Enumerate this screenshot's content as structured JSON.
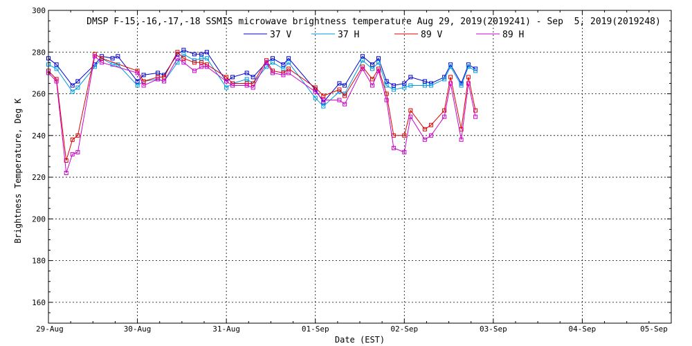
{
  "chart_data": {
    "type": "line",
    "title": "DMSP F-15,-16,-17,-18 SSMIS microwave brightness temperature Aug 29, 2019(2019241) - Sep  5, 2019(2019248)",
    "xlabel": "Date (EST)",
    "ylabel": "Brightness Temperature, Deg K",
    "x_unit": "days after 29-Aug 00:00 EST",
    "xlim": [
      0,
      7
    ],
    "ylim": [
      150,
      300
    ],
    "yticks": [
      160,
      180,
      200,
      220,
      240,
      260,
      280,
      300
    ],
    "xticks": [
      {
        "x": 0,
        "label": "29-Aug"
      },
      {
        "x": 1,
        "label": "30-Aug"
      },
      {
        "x": 2,
        "label": "31-Aug"
      },
      {
        "x": 3,
        "label": "01-Sep"
      },
      {
        "x": 4,
        "label": "02-Sep"
      },
      {
        "x": 5,
        "label": "03-Sep"
      },
      {
        "x": 6,
        "label": "04-Sep"
      },
      {
        "x": 7,
        "label": "05-Sep"
      }
    ],
    "grid": true,
    "legend_position": "top-center",
    "series": [
      {
        "name": "37 V",
        "color": "#0000cc",
        "x": [
          0.0,
          0.09,
          0.27,
          0.33,
          0.52,
          0.6,
          0.72,
          0.78,
          1.0,
          1.07,
          1.23,
          1.3,
          1.45,
          1.52,
          1.64,
          1.72,
          1.78,
          2.0,
          2.07,
          2.23,
          2.3,
          2.45,
          2.52,
          2.64,
          2.7,
          3.0,
          3.09,
          3.27,
          3.33,
          3.53,
          3.64,
          3.71,
          3.8,
          3.88,
          4.0,
          4.07,
          4.23,
          4.3,
          4.45,
          4.52,
          4.64,
          4.72,
          4.8
        ],
        "y": [
          277,
          274,
          264,
          266,
          274,
          278,
          277,
          278,
          266,
          269,
          270,
          269,
          279,
          281,
          279,
          279,
          280,
          266,
          268,
          270,
          268,
          275,
          277,
          274,
          277,
          262,
          256,
          265,
          264,
          278,
          274,
          277,
          266,
          264,
          265,
          268,
          266,
          265,
          268,
          274,
          265,
          274,
          272
        ]
      },
      {
        "name": "37 H",
        "color": "#0099dd",
        "x": [
          0.0,
          0.09,
          0.27,
          0.33,
          0.52,
          0.6,
          0.72,
          0.78,
          1.0,
          1.07,
          1.23,
          1.3,
          1.45,
          1.52,
          1.64,
          1.72,
          1.78,
          2.0,
          2.07,
          2.23,
          2.3,
          2.45,
          2.52,
          2.64,
          2.7,
          3.0,
          3.09,
          3.27,
          3.33,
          3.53,
          3.64,
          3.71,
          3.8,
          3.88,
          4.0,
          4.07,
          4.23,
          4.3,
          4.45,
          4.52,
          4.64,
          4.72,
          4.8
        ],
        "y": [
          274,
          272,
          261,
          263,
          273,
          277,
          274,
          274,
          264,
          266,
          267,
          266,
          275,
          279,
          276,
          277,
          277,
          263,
          265,
          267,
          265,
          273,
          275,
          272,
          275,
          258,
          254,
          261,
          260,
          276,
          272,
          275,
          264,
          262,
          263,
          264,
          264,
          264,
          267,
          273,
          264,
          273,
          271
        ]
      },
      {
        "name": "89 V",
        "color": "#dd0000",
        "x": [
          0.0,
          0.09,
          0.2,
          0.27,
          0.33,
          0.52,
          0.6,
          1.0,
          1.07,
          1.23,
          1.3,
          1.45,
          1.52,
          1.64,
          1.72,
          1.78,
          2.0,
          2.07,
          2.23,
          2.3,
          2.45,
          2.52,
          2.64,
          2.7,
          3.0,
          3.09,
          3.27,
          3.33,
          3.53,
          3.64,
          3.71,
          3.8,
          3.88,
          4.0,
          4.07,
          4.23,
          4.3,
          4.45,
          4.52,
          4.64,
          4.72,
          4.8
        ],
        "y": [
          271,
          267,
          228,
          238,
          240,
          279,
          277,
          271,
          266,
          268,
          268,
          280,
          277,
          275,
          275,
          274,
          268,
          265,
          265,
          265,
          276,
          271,
          270,
          272,
          263,
          259,
          262,
          259,
          273,
          267,
          272,
          260,
          240,
          240,
          252,
          243,
          245,
          252,
          268,
          243,
          268,
          252
        ]
      },
      {
        "name": "89 H",
        "color": "#cc00cc",
        "x": [
          0.0,
          0.09,
          0.2,
          0.27,
          0.33,
          0.52,
          0.6,
          1.0,
          1.07,
          1.23,
          1.3,
          1.45,
          1.52,
          1.64,
          1.72,
          1.78,
          2.0,
          2.07,
          2.23,
          2.3,
          2.45,
          2.52,
          2.64,
          2.7,
          3.0,
          3.09,
          3.27,
          3.33,
          3.53,
          3.64,
          3.71,
          3.8,
          3.88,
          4.0,
          4.07,
          4.23,
          4.3,
          4.45,
          4.52,
          4.64,
          4.72,
          4.8
        ],
        "y": [
          270,
          266,
          222,
          231,
          232,
          278,
          275,
          270,
          264,
          267,
          266,
          277,
          275,
          271,
          273,
          273,
          266,
          264,
          264,
          263,
          275,
          270,
          269,
          270,
          261,
          257,
          257,
          255,
          272,
          264,
          271,
          257,
          234,
          232,
          249,
          238,
          240,
          249,
          265,
          238,
          265,
          249
        ]
      }
    ]
  }
}
